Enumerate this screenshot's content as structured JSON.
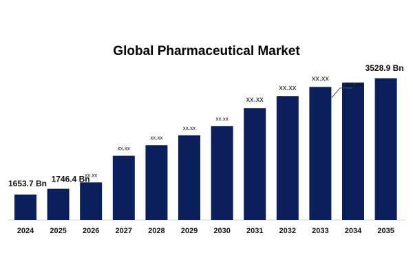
{
  "chart_data": {
    "type": "bar",
    "title": "Global Pharmaceutical Market",
    "xlabel": "",
    "ylabel": "",
    "categories": [
      "2024",
      "2025",
      "2026",
      "2027",
      "2028",
      "2029",
      "2030",
      "2031",
      "2032",
      "2033",
      "2034",
      "2035"
    ],
    "values": [
      1653.7,
      1746.4,
      1850,
      2280,
      2450,
      2610,
      2760,
      3050,
      3240,
      3390,
      3460,
      3528.9
    ],
    "value_labels": [
      "1653.7 Bn",
      "1746.4 Bn",
      "xx.xx",
      "xx.xx",
      "xx.xx",
      "xx.xx",
      "xx.xx",
      "xx.xx",
      "xx.xx",
      "xx.xx",
      "xx.xx",
      "3528.9 Bn"
    ],
    "bar_color": "#0b1f5c",
    "grid": false,
    "legend": "none"
  }
}
